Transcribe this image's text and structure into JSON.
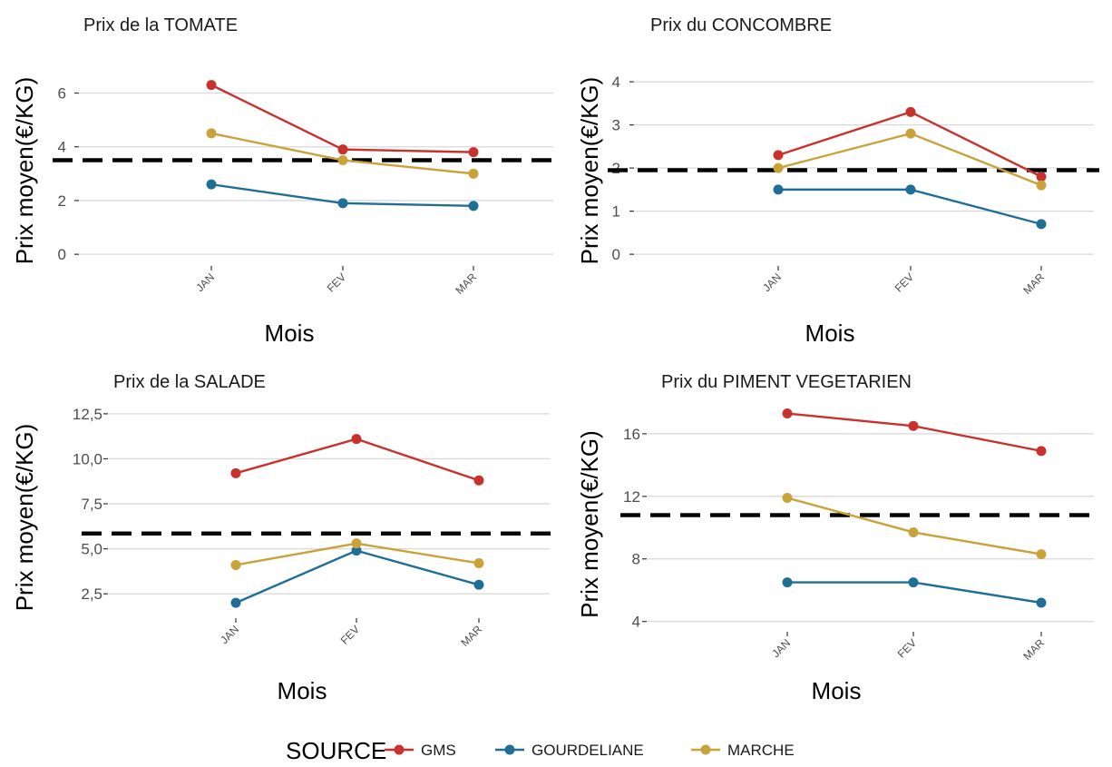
{
  "colors": {
    "GMS": "#c8312c",
    "GOURDELIANE": "#1f6e95",
    "MARCHE": "#c9a33a",
    "reference_line": "#000000",
    "grid": "#d9d9d9"
  },
  "legend": {
    "title": "SOURCE",
    "items": [
      "GMS",
      "GOURDELIANE",
      "MARCHE"
    ]
  },
  "chart_data": [
    {
      "type": "line",
      "title": "Prix de la TOMATE",
      "xlabel": "Mois",
      "ylabel": "Prix moyen(€/KG)",
      "categories": [
        "JAN",
        "FEV",
        "MAR"
      ],
      "yticks": [
        0,
        2,
        4,
        6
      ],
      "ytick_labels": [
        "0",
        "2",
        "4",
        "6"
      ],
      "ylim": [
        -0.4,
        7.3
      ],
      "reference_line": 3.5,
      "grid": "horizontal",
      "series": [
        {
          "name": "GMS",
          "values": [
            6.3,
            3.9,
            3.8
          ]
        },
        {
          "name": "GOURDELIANE",
          "values": [
            2.6,
            1.9,
            1.8
          ]
        },
        {
          "name": "MARCHE",
          "values": [
            4.5,
            3.5,
            3.0
          ]
        }
      ]
    },
    {
      "type": "line",
      "title": "Prix du CONCOMBRE",
      "xlabel": "Mois",
      "ylabel": "Prix moyen(€/KG)",
      "categories": [
        "JAN",
        "FEV",
        "MAR"
      ],
      "yticks": [
        0,
        1,
        2,
        3,
        4
      ],
      "ytick_labels": [
        "0",
        "1",
        "2",
        "3",
        "4"
      ],
      "ylim": [
        -0.25,
        4.55
      ],
      "reference_line": 1.95,
      "grid": "horizontal",
      "series": [
        {
          "name": "GMS",
          "values": [
            2.3,
            3.3,
            1.8
          ]
        },
        {
          "name": "GOURDELIANE",
          "values": [
            1.5,
            1.5,
            0.7
          ]
        },
        {
          "name": "MARCHE",
          "values": [
            2.0,
            2.8,
            1.6
          ]
        }
      ]
    },
    {
      "type": "line",
      "title": "Prix de la SALADE",
      "xlabel": "Mois",
      "ylabel": "Prix moyen(€/KG)",
      "categories": [
        "JAN",
        "FEV",
        "MAR"
      ],
      "yticks": [
        2.5,
        5.0,
        7.5,
        10.0,
        12.5
      ],
      "ytick_labels": [
        "2,5",
        "5,0",
        "7,5",
        "10,0",
        "12,5"
      ],
      "ylim": [
        1.2,
        13.3
      ],
      "reference_line": 5.85,
      "grid": "horizontal",
      "series": [
        {
          "name": "GMS",
          "values": [
            9.2,
            11.1,
            8.8
          ]
        },
        {
          "name": "GOURDELIANE",
          "values": [
            2.0,
            4.9,
            3.0
          ]
        },
        {
          "name": "MARCHE",
          "values": [
            4.1,
            5.3,
            4.2
          ]
        }
      ]
    },
    {
      "type": "line",
      "title": "Prix du PIMENT VEGETARIEN",
      "xlabel": "Mois",
      "ylabel": "Prix moyen(€/KG)",
      "categories": [
        "JAN",
        "FEV",
        "MAR"
      ],
      "yticks": [
        4,
        8,
        12,
        16
      ],
      "ytick_labels": [
        "4",
        "8",
        "12",
        "16"
      ],
      "ylim": [
        3.4,
        18.2
      ],
      "reference_line": 10.8,
      "grid": "horizontal",
      "series": [
        {
          "name": "GMS",
          "values": [
            17.3,
            16.5,
            14.9
          ]
        },
        {
          "name": "GOURDELIANE",
          "values": [
            6.5,
            6.5,
            5.2
          ]
        },
        {
          "name": "MARCHE",
          "values": [
            11.9,
            9.7,
            8.3
          ]
        }
      ]
    }
  ]
}
